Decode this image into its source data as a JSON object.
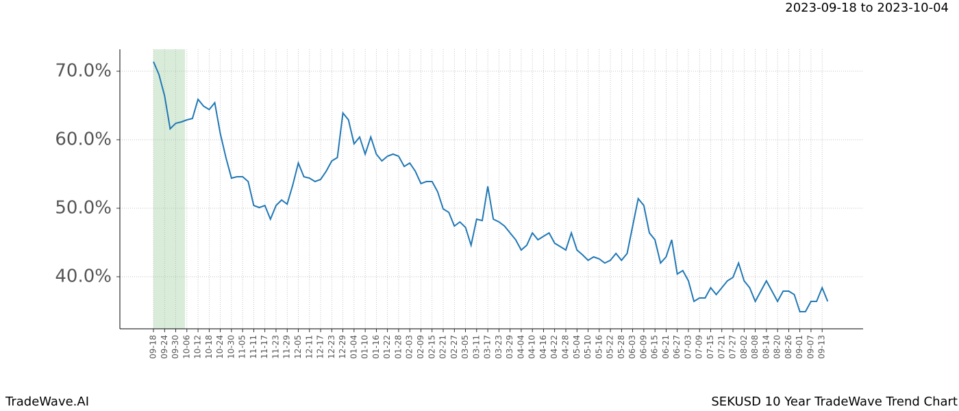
{
  "chart_data": {
    "type": "line",
    "title": "2023-09-18 to 2023-10-04",
    "footer_left": "TradeWave.AI",
    "footer_right": "SEKUSD 10 Year TradeWave Trend Chart",
    "categories": [
      "09-18",
      null,
      "09-24",
      null,
      "09-30",
      null,
      "10-06",
      null,
      "10-12",
      null,
      "10-18",
      null,
      "10-24",
      null,
      "10-30",
      null,
      "11-05",
      null,
      "11-11",
      null,
      "11-17",
      null,
      "11-23",
      null,
      "11-29",
      null,
      "12-05",
      null,
      "12-11",
      null,
      "12-17",
      null,
      "12-23",
      null,
      "12-29",
      null,
      "01-04",
      null,
      "01-10",
      null,
      "01-16",
      null,
      "01-22",
      null,
      "01-28",
      null,
      "02-03",
      null,
      "02-09",
      null,
      "02-15",
      null,
      "02-21",
      null,
      "02-27",
      null,
      "03-05",
      null,
      "03-11",
      null,
      "03-17",
      null,
      "03-23",
      null,
      "03-29",
      null,
      "04-04",
      null,
      "04-10",
      null,
      "04-16",
      null,
      "04-22",
      null,
      "04-28",
      null,
      "05-04",
      null,
      "05-10",
      null,
      "05-16",
      null,
      "05-22",
      null,
      "05-28",
      null,
      "06-03",
      null,
      "06-09",
      null,
      "06-15",
      null,
      "06-21",
      null,
      "06-27",
      null,
      "07-03",
      null,
      "07-09",
      null,
      "07-15",
      null,
      "07-21",
      null,
      "07-27",
      null,
      "08-02",
      null,
      "08-08",
      null,
      "08-14",
      null,
      "08-20",
      null,
      "08-26",
      null,
      "09-01",
      null,
      "09-07",
      null,
      "09-13",
      null
    ],
    "series": [
      {
        "name": "SEKUSD",
        "color": "#1f77b4",
        "values": [
          71.4,
          69.5,
          66.4,
          61.6,
          62.4,
          62.6,
          62.9,
          63.1,
          65.9,
          64.9,
          64.4,
          65.4,
          60.9,
          57.4,
          54.4,
          54.6,
          54.6,
          53.9,
          50.4,
          50.1,
          50.4,
          48.4,
          50.4,
          51.2,
          50.6,
          53.4,
          56.6,
          54.6,
          54.4,
          53.9,
          54.2,
          55.4,
          56.9,
          57.4,
          63.9,
          62.9,
          59.4,
          60.4,
          57.9,
          60.4,
          57.9,
          56.9,
          57.6,
          57.9,
          57.6,
          56.1,
          56.6,
          55.4,
          53.6,
          53.9,
          53.9,
          52.4,
          49.9,
          49.4,
          47.4,
          48.0,
          47.2,
          44.6,
          48.4,
          48.2,
          53.2,
          48.4,
          48.0,
          47.4,
          46.4,
          45.4,
          43.9,
          44.6,
          46.4,
          45.4,
          45.9,
          46.4,
          44.9,
          44.4,
          43.9,
          46.4,
          43.9,
          43.2,
          42.4,
          42.9,
          42.6,
          42.0,
          42.4,
          43.4,
          42.4,
          43.4,
          47.4,
          51.4,
          50.4,
          46.4,
          45.4,
          42.0,
          42.9,
          45.4,
          40.4,
          40.9,
          39.4,
          36.4,
          36.9,
          36.9,
          38.4,
          37.4,
          38.4,
          39.4,
          39.9,
          42.0,
          39.4,
          38.4,
          36.4,
          37.9,
          39.4,
          37.9,
          36.4,
          37.9,
          37.9,
          37.4,
          34.9,
          34.9,
          36.4,
          36.4,
          38.4,
          36.4
        ]
      }
    ],
    "ylim": [
      32.4,
      73.2
    ],
    "yticks": [
      {
        "value": 40,
        "label": "40.0%"
      },
      {
        "value": 50,
        "label": "50.0%"
      },
      {
        "value": 60,
        "label": "60.0%"
      },
      {
        "value": 70,
        "label": "70.0%"
      }
    ],
    "grid": true,
    "shade_x": [
      0,
      5.67
    ],
    "shade_color": "#d9ecd9"
  }
}
